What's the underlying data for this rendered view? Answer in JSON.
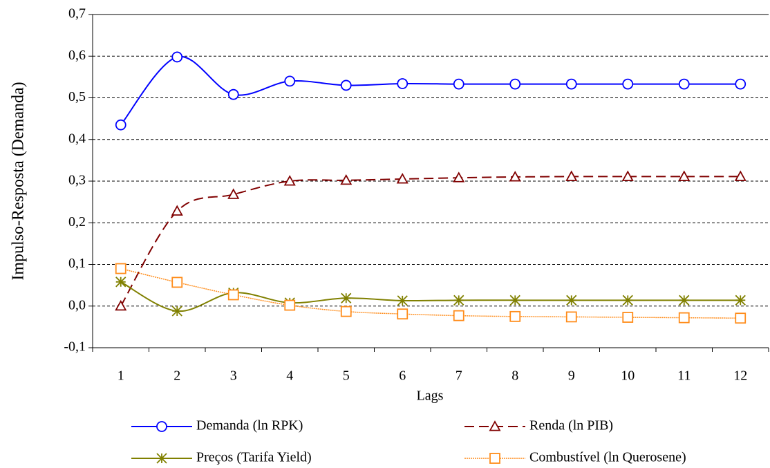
{
  "chart_data": {
    "type": "line",
    "y_label": "Impulso-Resposta (Demanda)",
    "x_label": "Lags",
    "categories": [
      "1",
      "2",
      "3",
      "4",
      "5",
      "6",
      "7",
      "8",
      "9",
      "10",
      "11",
      "12"
    ],
    "series": [
      {
        "name": "Demanda (ln RPK)",
        "color": "#0000ff",
        "marker": "circle",
        "line_style": "solid",
        "values": [
          0.435,
          0.598,
          0.508,
          0.54,
          0.53,
          0.534,
          0.533,
          0.533,
          0.533,
          0.533,
          0.533,
          0.533
        ]
      },
      {
        "name": "Renda (ln PIB)",
        "color": "#800000",
        "marker": "triangle",
        "line_style": "dashed",
        "values": [
          0.0,
          0.228,
          0.268,
          0.3,
          0.302,
          0.305,
          0.308,
          0.31,
          0.311,
          0.311,
          0.311,
          0.311
        ]
      },
      {
        "name": "Preços (Tarifa Yield)",
        "color": "#808000",
        "marker": "star",
        "line_style": "solid",
        "values": [
          0.058,
          -0.012,
          0.032,
          0.008,
          0.019,
          0.013,
          0.014,
          0.014,
          0.014,
          0.014,
          0.014,
          0.014
        ]
      },
      {
        "name": "Combustível (ln Querosene)",
        "color": "#ff8c1a",
        "marker": "square",
        "line_style": "dotted",
        "values": [
          0.09,
          0.057,
          0.027,
          0.002,
          -0.013,
          -0.019,
          -0.023,
          -0.025,
          -0.026,
          -0.027,
          -0.028,
          -0.029
        ]
      }
    ],
    "ylim": [
      -0.1,
      0.7
    ],
    "yticks": [
      {
        "value": -0.1,
        "label": "-0,1"
      },
      {
        "value": 0.0,
        "label": "0,0"
      },
      {
        "value": 0.1,
        "label": "0,1"
      },
      {
        "value": 0.2,
        "label": "0,2"
      },
      {
        "value": 0.3,
        "label": "0,3"
      },
      {
        "value": 0.4,
        "label": "0,4"
      },
      {
        "value": 0.5,
        "label": "0,5"
      },
      {
        "value": 0.6,
        "label": "0,6"
      },
      {
        "value": 0.7,
        "label": "0,7"
      }
    ],
    "grid": true
  }
}
